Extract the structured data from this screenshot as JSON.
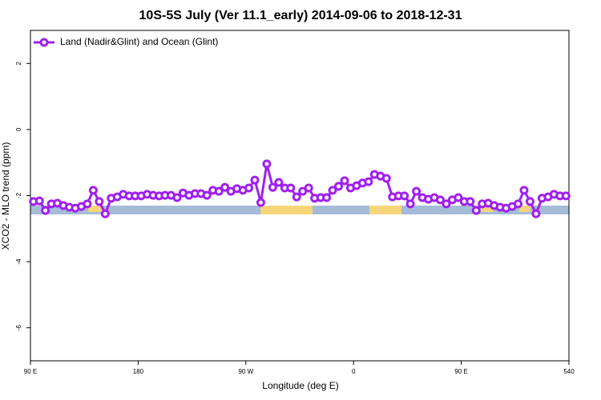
{
  "chart_data": {
    "type": "line",
    "title": "10S-5S July (Ver 11.1_early)   2014-09-06 to 2018-12-31",
    "xlabel": "Longitude (deg E)",
    "ylabel": "XCO2 - MLO trend (ppm)",
    "x": [
      92.5,
      97.5,
      102.5,
      107.5,
      112.5,
      117.5,
      122.5,
      127.5,
      132.5,
      137.5,
      142.5,
      147.5,
      152.5,
      157.5,
      162.5,
      167.5,
      172.5,
      177.5,
      182.5,
      187.5,
      192.5,
      197.5,
      202.5,
      207.5,
      212.5,
      217.5,
      222.5,
      227.5,
      232.5,
      237.5,
      242.5,
      247.5,
      252.5,
      257.5,
      262.5,
      267.5,
      272.5,
      277.5,
      282.5,
      287.5,
      292.5,
      297.5,
      302.5,
      307.5,
      312.5,
      317.5,
      322.5,
      327.5,
      332.5,
      337.5,
      342.5,
      347.5,
      352.5,
      357.5,
      362.5,
      367.5,
      372.5,
      377.5,
      382.5,
      387.5,
      392.5,
      397.5,
      402.5,
      407.5,
      412.5,
      417.5,
      422.5,
      427.5,
      432.5,
      437.5,
      442.5,
      447.5,
      452.5,
      457.5,
      462.5,
      467.5,
      472.5,
      477.5,
      482.5,
      487.5,
      492.5,
      497.5,
      502.5,
      507.5,
      512.5,
      517.5,
      522.5,
      527.5,
      532.5,
      537.5
    ],
    "series": [
      {
        "name": "Land (Nadir&Glint) and Ocean (Glint)",
        "color": "#a020f0",
        "values": [
          -2.18,
          -2.16,
          -2.45,
          -2.25,
          -2.23,
          -2.3,
          -2.35,
          -2.38,
          -2.33,
          -2.25,
          -1.84,
          -2.18,
          -2.55,
          -2.08,
          -2.04,
          -1.96,
          -2.01,
          -2.01,
          -2.01,
          -1.96,
          -1.99,
          -2.01,
          -1.99,
          -1.99,
          -2.06,
          -1.92,
          -1.99,
          -1.94,
          -1.94,
          -1.99,
          -1.84,
          -1.87,
          -1.75,
          -1.87,
          -1.79,
          -1.84,
          -1.77,
          -1.53,
          -2.21,
          -1.04,
          -1.75,
          -1.6,
          -1.77,
          -1.77,
          -2.04,
          -1.87,
          -1.77,
          -2.08,
          -2.06,
          -2.06,
          -1.84,
          -1.72,
          -1.55,
          -1.77,
          -1.7,
          -1.62,
          -1.58,
          -1.36,
          -1.41,
          -1.48,
          -2.04,
          -2.01,
          -2.01,
          -2.25,
          -1.87,
          -2.06,
          -2.11,
          -2.06,
          -2.13,
          -2.25,
          -2.13,
          -2.06,
          -2.18,
          -2.18,
          -2.45,
          -2.25,
          -2.23,
          -2.3,
          -2.35,
          -2.38,
          -2.33,
          -2.25,
          -1.84,
          -2.18,
          -2.55,
          -2.08,
          -2.04,
          -1.96,
          -2.01,
          -2.01
        ]
      }
    ],
    "xlim": [
      90,
      540
    ],
    "xticks": [
      {
        "value": 90,
        "label": "90 E"
      },
      180,
      {
        "value": 270,
        "label": "90 W"
      },
      {
        "value": 360,
        "label": "0"
      },
      {
        "value": 450,
        "label": "90 E"
      },
      540
    ],
    "ylim": [
      -7,
      3
    ],
    "yticks": [
      -6,
      -4,
      -2,
      0,
      2
    ],
    "legend": "top-left"
  }
}
